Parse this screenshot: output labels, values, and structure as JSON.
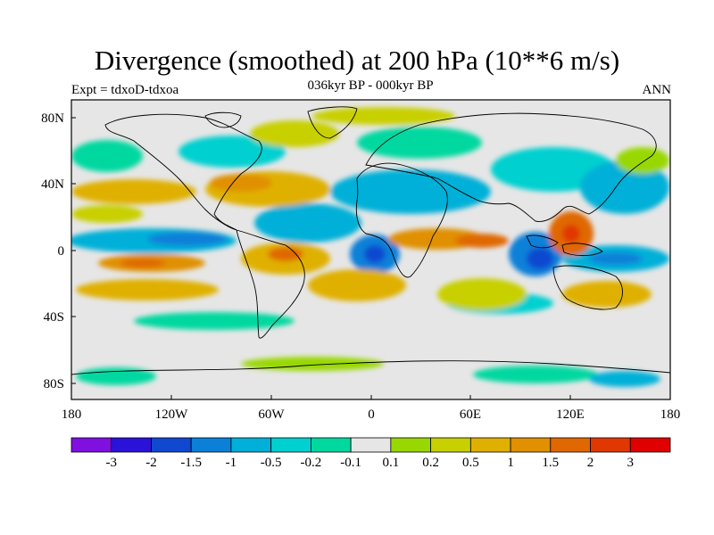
{
  "title": "Divergence (smoothed) at 200 hPa (10**6 m/s)",
  "subtitle": "036kyr BP - 000kyr BP",
  "left_string": "Expt = tdxoD-tdxoa",
  "right_string": "ANN",
  "axes": {
    "x_ticks": [
      "180",
      "120W",
      "60W",
      "0",
      "60E",
      "120E",
      "180"
    ],
    "y_ticks": [
      "80N",
      "40N",
      "0",
      "40S",
      "80S"
    ]
  },
  "colorbar": {
    "labels": [
      "-3",
      "-2",
      "-1.5",
      "-1",
      "-0.5",
      "-0.2",
      "-0.1",
      "0.1",
      "0.2",
      "0.5",
      "1",
      "1.5",
      "2",
      "3"
    ],
    "colors": [
      "#7f10e0",
      "#2a12d8",
      "#1048d0",
      "#0a80d8",
      "#00b0d8",
      "#00d0d0",
      "#00d8a0",
      "#e6e6e6",
      "#98d800",
      "#c8d000",
      "#e0b000",
      "#e09000",
      "#e06800",
      "#e03800",
      "#e00000"
    ]
  }
}
